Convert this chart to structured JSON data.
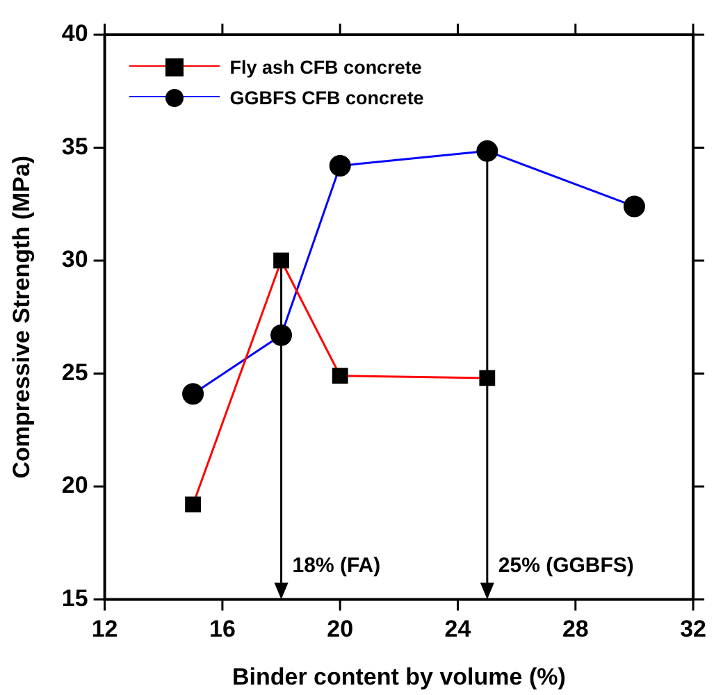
{
  "chart_data": {
    "type": "line",
    "xlabel": "Binder content by volume (%)",
    "ylabel": "Compressive Strength (MPa)",
    "xlim": [
      12,
      32
    ],
    "xticks": [
      12,
      16,
      20,
      24,
      28,
      32
    ],
    "ylim": [
      15,
      40
    ],
    "yticks": [
      15,
      20,
      25,
      30,
      35,
      40
    ],
    "grid": false,
    "legend": "top left",
    "series": [
      {
        "name": "Fly ash CFB concrete",
        "color": "#ff0000",
        "marker": "square",
        "x": [
          15,
          18,
          20,
          25
        ],
        "values": [
          19.2,
          30.0,
          24.9,
          24.8
        ]
      },
      {
        "name": "GGBFS CFB concrete",
        "color": "#0000ff",
        "marker": "circle",
        "x": [
          15,
          18,
          20,
          25,
          30
        ],
        "values": [
          24.1,
          26.7,
          34.2,
          34.85,
          32.4
        ]
      }
    ],
    "annotations": [
      {
        "text": "18% (FA)",
        "x": 18,
        "y": 30.0
      },
      {
        "text": "25% (GGBFS)",
        "x": 25,
        "y": 34.85
      }
    ]
  }
}
